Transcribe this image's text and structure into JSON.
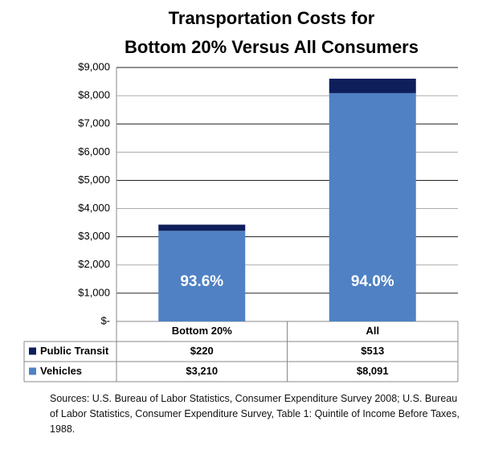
{
  "chart_data": {
    "type": "stacked_bar",
    "title": [
      "Transportation Costs for",
      "Bottom 20% Versus All Consumers"
    ],
    "categories": [
      "Bottom 20%",
      "All"
    ],
    "series": [
      {
        "name": "Vehicles",
        "color": "#4f81c4",
        "values": [
          3210,
          8091
        ],
        "value_labels": [
          "$3,210",
          "$8,091"
        ]
      },
      {
        "name": "Public Transit",
        "color": "#0e1f5b",
        "values": [
          220,
          513
        ],
        "value_labels": [
          "$220",
          "$513"
        ]
      }
    ],
    "annotations": [
      "93.6%",
      "94.0%"
    ],
    "ylim": [
      0,
      9000
    ],
    "yticks": [
      {
        "value": 0,
        "label": "$-"
      },
      {
        "value": 1000,
        "label": "$1,000"
      },
      {
        "value": 2000,
        "label": "$2,000"
      },
      {
        "value": 3000,
        "label": "$3,000"
      },
      {
        "value": 4000,
        "label": "$4,000"
      },
      {
        "value": 5000,
        "label": "$5,000"
      },
      {
        "value": 6000,
        "label": "$6,000"
      },
      {
        "value": 7000,
        "label": "$7,000"
      },
      {
        "value": 8000,
        "label": "$8,000"
      },
      {
        "value": 9000,
        "label": "$9,000"
      }
    ],
    "grid": true,
    "source": "Sources: U.S. Bureau of Labor Statistics, Consumer Expenditure Survey 2008; U.S. Bureau of Labor Statistics, Consumer Expenditure Survey, Table 1: Quintile of Income Before Taxes, 1988."
  }
}
